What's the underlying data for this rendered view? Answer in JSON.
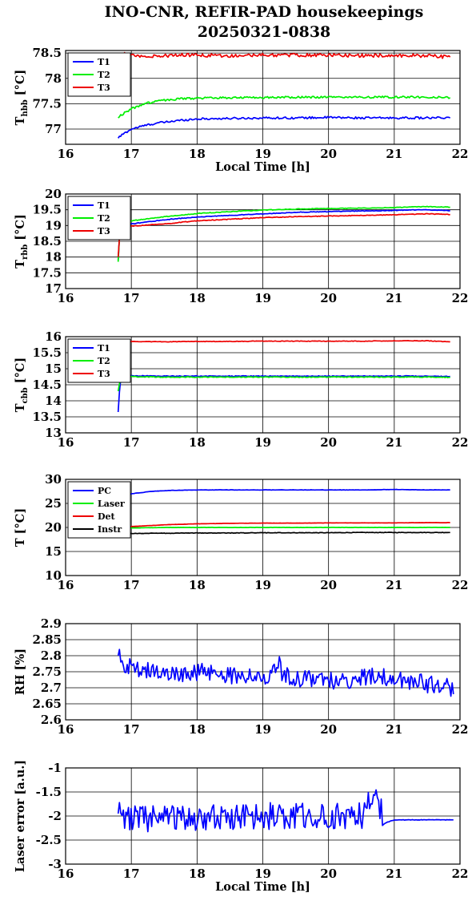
{
  "title_line1": "INO-CNR, REFIR-PAD housekeepings",
  "title_line2": "20250321-0838",
  "colors": {
    "blue": "#0000ff",
    "green": "#00ee00",
    "red": "#ee0000",
    "black": "#000000"
  },
  "chart_data": [
    {
      "type": "line",
      "ylabel": "T",
      "ylabel_sub": "hbb",
      "ylabel_unit": " [°C]",
      "xlabel": "Local Time [h]",
      "xlim": [
        16,
        22
      ],
      "ylim": [
        76.7,
        78.55
      ],
      "xticks": [
        "16",
        "17",
        "18",
        "19",
        "20",
        "21",
        "22"
      ],
      "yticks": [
        77,
        77.5,
        78,
        78.5
      ],
      "ytick_labels": [
        "77",
        "77.5",
        "78",
        "78.5"
      ],
      "grid": true,
      "legend": "top-left",
      "x": [
        16.8,
        16.85,
        16.9,
        17.0,
        17.2,
        17.4,
        17.6,
        17.8,
        18.0,
        18.5,
        19.0,
        19.5,
        20.0,
        20.5,
        21.0,
        21.5,
        21.85
      ],
      "series": [
        {
          "name": "T1",
          "color": "#0000ff",
          "noise": 0.02,
          "values": [
            76.82,
            76.88,
            76.92,
            77.0,
            77.07,
            77.12,
            77.15,
            77.18,
            77.2,
            77.21,
            77.22,
            77.22,
            77.23,
            77.22,
            77.22,
            77.22,
            77.22
          ]
        },
        {
          "name": "T2",
          "color": "#00ee00",
          "noise": 0.02,
          "values": [
            77.22,
            77.28,
            77.32,
            77.4,
            77.5,
            77.55,
            77.58,
            77.6,
            77.61,
            77.62,
            77.62,
            77.63,
            77.63,
            77.63,
            77.63,
            77.63,
            77.62
          ]
        },
        {
          "name": "T3",
          "color": "#ee0000",
          "noise": 0.035,
          "values": [
            78.35,
            78.5,
            78.48,
            78.45,
            78.43,
            78.44,
            78.45,
            78.46,
            78.46,
            78.45,
            78.46,
            78.46,
            78.46,
            78.45,
            78.45,
            78.45,
            78.42
          ]
        }
      ]
    },
    {
      "type": "line",
      "ylabel": "T",
      "ylabel_sub": "rbb",
      "ylabel_unit": " [°C]",
      "xlabel": "",
      "xlim": [
        16,
        22
      ],
      "ylim": [
        17,
        20
      ],
      "xticks": [
        "16",
        "17",
        "18",
        "19",
        "20",
        "21",
        "22"
      ],
      "yticks": [
        17,
        17.5,
        18,
        18.5,
        19,
        19.5,
        20
      ],
      "ytick_labels": [
        "17",
        "17.5",
        "18",
        "18.5",
        "19",
        "19.5",
        "20"
      ],
      "grid": true,
      "legend": "top-left",
      "x": [
        16.8,
        16.83,
        16.86,
        17.0,
        17.5,
        18.0,
        18.5,
        19.0,
        19.5,
        20.0,
        20.5,
        21.0,
        21.5,
        21.85
      ],
      "series": [
        {
          "name": "T1",
          "color": "#0000ff",
          "noise": 0.01,
          "values": [
            17.9,
            19.0,
            19.05,
            19.05,
            19.18,
            19.27,
            19.32,
            19.37,
            19.42,
            19.44,
            19.46,
            19.48,
            19.5,
            19.47
          ]
        },
        {
          "name": "T2",
          "color": "#00ee00",
          "noise": 0.01,
          "values": [
            17.85,
            19.05,
            19.12,
            19.15,
            19.28,
            19.38,
            19.44,
            19.49,
            19.52,
            19.54,
            19.55,
            19.57,
            19.6,
            19.58
          ]
        },
        {
          "name": "T3",
          "color": "#ee0000",
          "noise": 0.01,
          "values": [
            18.0,
            18.95,
            18.98,
            18.98,
            19.05,
            19.15,
            19.2,
            19.25,
            19.28,
            19.3,
            19.32,
            19.34,
            19.37,
            19.35
          ]
        }
      ]
    },
    {
      "type": "line",
      "ylabel": "T",
      "ylabel_sub": "cbb",
      "ylabel_unit": " [°C]",
      "xlabel": "",
      "xlim": [
        16,
        22
      ],
      "ylim": [
        13,
        16
      ],
      "xticks": [
        "16",
        "17",
        "18",
        "19",
        "20",
        "21",
        "22"
      ],
      "yticks": [
        13,
        13.5,
        14,
        14.5,
        15,
        15.5,
        16
      ],
      "ytick_labels": [
        "13",
        "13.5",
        "14",
        "14.5",
        "15",
        "15.5",
        "16"
      ],
      "grid": true,
      "legend": "top-left",
      "x": [
        16.8,
        16.83,
        16.86,
        17.0,
        17.5,
        18.0,
        18.5,
        19.0,
        19.5,
        20.0,
        20.5,
        21.0,
        21.5,
        21.85
      ],
      "series": [
        {
          "name": "T1",
          "color": "#0000ff",
          "noise": 0.012,
          "values": [
            13.65,
            14.6,
            14.82,
            14.78,
            14.77,
            14.77,
            14.77,
            14.77,
            14.77,
            14.77,
            14.77,
            14.77,
            14.77,
            14.76
          ]
        },
        {
          "name": "T2",
          "color": "#00ee00",
          "noise": 0.012,
          "values": [
            14.3,
            14.65,
            14.78,
            14.75,
            14.74,
            14.74,
            14.74,
            14.74,
            14.74,
            14.74,
            14.74,
            14.74,
            14.74,
            14.73
          ]
        },
        {
          "name": "T3",
          "color": "#ee0000",
          "noise": 0.008,
          "values": [
            15.9,
            15.88,
            15.86,
            15.85,
            15.84,
            15.85,
            15.85,
            15.86,
            15.86,
            15.86,
            15.86,
            15.87,
            15.87,
            15.84
          ]
        }
      ]
    },
    {
      "type": "line",
      "ylabel": "T [°C]",
      "ylabel_sub": "",
      "ylabel_unit": "",
      "xlabel": "",
      "xlim": [
        16,
        22
      ],
      "ylim": [
        10,
        30
      ],
      "xticks": [
        "16",
        "17",
        "18",
        "19",
        "20",
        "21",
        "22"
      ],
      "yticks": [
        10,
        15,
        20,
        25,
        30
      ],
      "ytick_labels": [
        "10",
        "15",
        "20",
        "25",
        "30"
      ],
      "grid": true,
      "legend": "top-left",
      "x": [
        16.8,
        16.9,
        17.0,
        17.3,
        17.6,
        18.0,
        18.5,
        19.0,
        19.5,
        20.0,
        20.5,
        21.0,
        21.5,
        21.85
      ],
      "series": [
        {
          "name": "PC",
          "color": "#0000ff",
          "noise": 0.03,
          "values": [
            25.5,
            26.4,
            27.0,
            27.5,
            27.7,
            27.8,
            27.8,
            27.8,
            27.8,
            27.8,
            27.8,
            27.9,
            27.8,
            27.8
          ]
        },
        {
          "name": "Laser",
          "color": "#00ee00",
          "noise": 0.02,
          "values": [
            19.8,
            19.85,
            19.9,
            19.95,
            20.0,
            20.0,
            20.0,
            20.0,
            20.0,
            20.0,
            20.0,
            20.0,
            20.0,
            20.0
          ]
        },
        {
          "name": "Det",
          "color": "#ee0000",
          "noise": 0.02,
          "values": [
            20.0,
            20.1,
            20.2,
            20.4,
            20.6,
            20.75,
            20.85,
            20.9,
            20.9,
            20.95,
            20.95,
            20.95,
            21.0,
            21.0
          ]
        },
        {
          "name": "Instr",
          "color": "#000000",
          "noise": 0.05,
          "values": [
            18.7,
            18.7,
            18.75,
            18.8,
            18.8,
            18.85,
            18.85,
            18.9,
            18.9,
            18.9,
            18.95,
            18.95,
            18.95,
            18.95
          ]
        }
      ]
    },
    {
      "type": "line",
      "ylabel": "RH [%]",
      "ylabel_sub": "",
      "ylabel_unit": "",
      "xlabel": "",
      "xlim": [
        16,
        22
      ],
      "ylim": [
        2.6,
        2.9
      ],
      "xticks": [
        "16",
        "17",
        "18",
        "19",
        "20",
        "21",
        "22"
      ],
      "yticks": [
        2.6,
        2.65,
        2.7,
        2.75,
        2.8,
        2.85,
        2.9
      ],
      "ytick_labels": [
        "2.6",
        "2.65",
        "2.7",
        "2.75",
        "2.8",
        "2.85",
        "2.9"
      ],
      "grid": true,
      "legend": "none",
      "x": [
        16.8,
        16.85,
        16.9,
        17.0,
        17.1,
        17.2,
        17.3,
        17.5,
        17.7,
        17.9,
        18.1,
        18.3,
        18.5,
        18.7,
        18.9,
        19.1,
        19.25,
        19.3,
        19.5,
        19.7,
        19.9,
        20.1,
        20.3,
        20.5,
        20.7,
        20.9,
        21.1,
        21.3,
        21.5,
        21.7,
        21.85,
        21.9
      ],
      "series": [
        {
          "name": "",
          "color": "#0000ff",
          "noise": 0.028,
          "values": [
            2.8,
            2.79,
            2.77,
            2.77,
            2.76,
            2.75,
            2.76,
            2.75,
            2.75,
            2.74,
            2.75,
            2.74,
            2.74,
            2.74,
            2.73,
            2.74,
            2.77,
            2.74,
            2.73,
            2.73,
            2.73,
            2.72,
            2.72,
            2.73,
            2.74,
            2.73,
            2.72,
            2.72,
            2.71,
            2.71,
            2.7,
            2.68
          ]
        }
      ]
    },
    {
      "type": "line",
      "ylabel": "Laser error [a.u.]",
      "ylabel_sub": "",
      "ylabel_unit": "",
      "xlabel": "Local Time [h]",
      "xlim": [
        16,
        22
      ],
      "ylim": [
        -3,
        -1
      ],
      "xticks": [
        "16",
        "17",
        "18",
        "19",
        "20",
        "21",
        "22"
      ],
      "yticks": [
        -3,
        -2.5,
        -2,
        -1.5,
        -1
      ],
      "ytick_labels": [
        "-3",
        "-2.5",
        "-2",
        "-1.5",
        "-1"
      ],
      "grid": true,
      "legend": "none",
      "x": [
        16.8,
        17.0,
        17.5,
        18.0,
        18.5,
        19.0,
        19.5,
        20.0,
        20.5,
        20.6,
        20.7,
        20.8,
        20.85,
        21.0,
        21.5,
        21.9
      ],
      "series": [
        {
          "name": "",
          "color": "#0000ff",
          "noise": 0.28,
          "noise_until": 20.85,
          "values": [
            -1.95,
            -2.05,
            -2.05,
            -2.05,
            -2.0,
            -2.0,
            -2.0,
            -2.0,
            -2.0,
            -1.75,
            -1.7,
            -1.8,
            -2.15,
            -2.08,
            -2.08,
            -2.08
          ]
        }
      ]
    }
  ]
}
